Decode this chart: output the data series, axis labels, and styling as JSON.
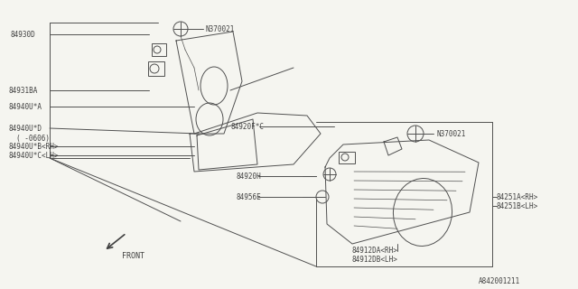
{
  "bg_color": "#f5f5f0",
  "line_color": "#505050",
  "text_color": "#404040",
  "diagram_id": "A842001211",
  "figsize": [
    6.4,
    3.2
  ],
  "dpi": 100,
  "xlim": [
    0,
    640
  ],
  "ylim": [
    0,
    320
  ]
}
